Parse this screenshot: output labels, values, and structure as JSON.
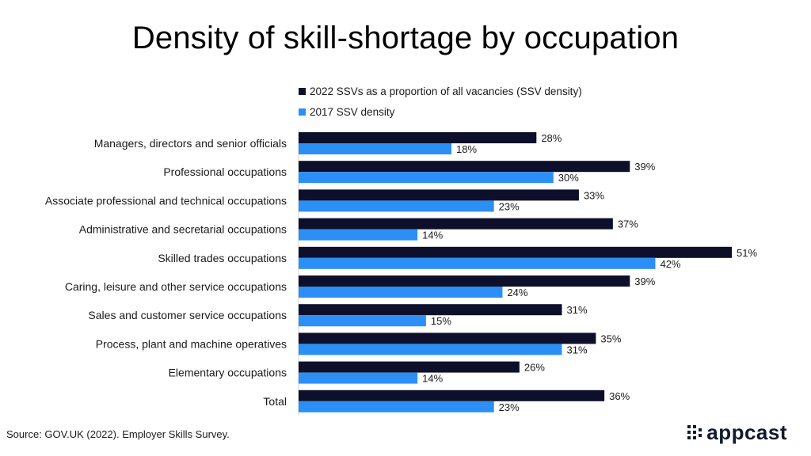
{
  "chart_data": {
    "type": "bar",
    "orientation": "horizontal",
    "title": "Density of skill-shortage by occupation",
    "categories": [
      "Managers, directors and senior officials",
      "Professional occupations",
      "Associate professional and technical occupations",
      "Administrative and secretarial occupations",
      "Skilled trades occupations",
      "Caring, leisure and other service occupations",
      "Sales and customer service occupations",
      "Process, plant and machine operatives",
      "Elementary occupations",
      "Total"
    ],
    "series": [
      {
        "name": "2022 SSVs as a proportion of all vacancies (SSV density)",
        "color": "#0d0f2b",
        "values": [
          28,
          39,
          33,
          37,
          51,
          39,
          31,
          35,
          26,
          36
        ]
      },
      {
        "name": "2017 SSV density",
        "color": "#2b8ff5",
        "values": [
          18,
          30,
          23,
          14,
          42,
          24,
          15,
          31,
          14,
          23
        ]
      }
    ],
    "value_suffix": "%",
    "xlim": [
      0,
      51
    ],
    "xlabel": "",
    "ylabel": "",
    "grid": false,
    "legend_position": "top"
  },
  "footer": {
    "source": "Source: GOV.UK (2022). Employer Skills Survey.",
    "brand": "appcast",
    "brand_icon": "appcast-logo-icon"
  }
}
